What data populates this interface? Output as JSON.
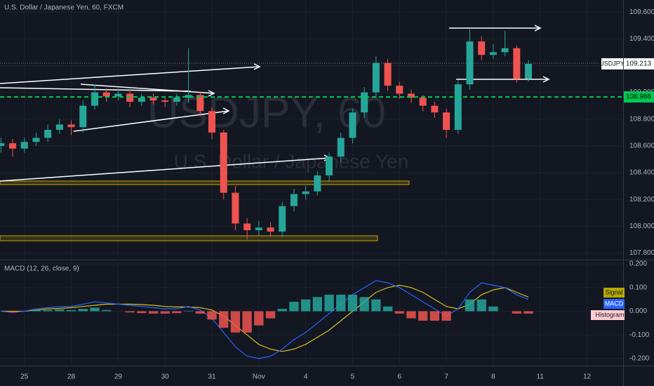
{
  "chart_data": {
    "type": "candlestick",
    "title": "U.S. Dollar / Japanese Yen, 60, FXCM",
    "watermark": "USDJPY, 60",
    "watermark_subtitle": "U.S. Dollar / Japanese Yen",
    "symbol": "USDJPY",
    "last_price": 109.213,
    "level_line": 108.966,
    "colors": {
      "up": "#26a69a",
      "down": "#ef5350",
      "macd": "#2962ff",
      "signal": "#d4c21c",
      "level": "#00c853"
    },
    "x": [
      -0.5,
      -0.25,
      0,
      0.25,
      0.5,
      0.75,
      1,
      1.25,
      1.5,
      1.75,
      2,
      2.25,
      2.5,
      2.75,
      3,
      3.25,
      3.5,
      3.75,
      4,
      4.25,
      4.5,
      4.75,
      5,
      5.25,
      5.5,
      5.75,
      6,
      6.25,
      6.5,
      6.75,
      7,
      7.25,
      7.5,
      7.75,
      8,
      8.25,
      8.5,
      8.75,
      9,
      9.25,
      9.5,
      9.75,
      10,
      10.25,
      10.5,
      10.75
    ],
    "open": [
      108.6,
      108.62,
      108.58,
      108.63,
      108.66,
      108.72,
      108.76,
      108.74,
      108.9,
      109.0,
      108.97,
      108.99,
      108.93,
      108.96,
      108.94,
      108.93,
      108.96,
      108.98,
      108.86,
      108.7,
      108.25,
      108.02,
      107.97,
      107.99,
      107.96,
      108.15,
      108.24,
      108.26,
      108.38,
      108.52,
      108.66,
      108.85,
      109.0,
      109.22,
      109.05,
      108.99,
      108.96,
      108.9,
      108.85,
      108.72,
      109.06,
      109.38,
      109.28,
      109.3,
      109.33,
      109.1
    ],
    "high": [
      108.66,
      108.65,
      108.66,
      108.7,
      108.76,
      108.8,
      108.79,
      108.94,
      109.06,
      109.03,
      109.03,
      109.02,
      108.99,
      108.99,
      108.97,
      108.99,
      109.33,
      109.0,
      108.89,
      108.72,
      108.3,
      108.06,
      108.04,
      108.03,
      108.18,
      108.28,
      108.3,
      108.41,
      108.55,
      108.7,
      108.88,
      109.04,
      109.27,
      109.25,
      109.08,
      109.02,
      108.98,
      108.93,
      108.88,
      109.09,
      109.47,
      109.42,
      109.36,
      109.46,
      109.35,
      109.24
    ],
    "low": [
      108.55,
      108.52,
      108.55,
      108.6,
      108.63,
      108.69,
      108.68,
      108.7,
      108.87,
      108.93,
      108.94,
      108.89,
      108.9,
      108.91,
      108.89,
      108.9,
      108.92,
      108.82,
      108.65,
      108.2,
      107.97,
      107.9,
      107.93,
      107.92,
      107.92,
      108.11,
      108.2,
      108.23,
      108.34,
      108.48,
      108.62,
      108.81,
      108.96,
      109.01,
      108.95,
      108.92,
      108.86,
      108.81,
      108.66,
      108.69,
      109.02,
      109.24,
      109.25,
      109.27,
      109.07,
      109.08
    ],
    "close": [
      108.62,
      108.58,
      108.63,
      108.66,
      108.72,
      108.76,
      108.74,
      108.9,
      109.0,
      108.97,
      108.99,
      108.93,
      108.96,
      108.94,
      108.93,
      108.96,
      108.98,
      108.86,
      108.7,
      108.25,
      108.02,
      107.97,
      107.99,
      107.96,
      108.15,
      108.24,
      108.26,
      108.38,
      108.52,
      108.66,
      108.85,
      109.0,
      109.22,
      109.05,
      108.99,
      108.96,
      108.9,
      108.85,
      108.72,
      109.06,
      109.38,
      109.28,
      109.3,
      109.33,
      109.1,
      109.213
    ],
    "xlim": [
      -0.52,
      12.77
    ],
    "xticks": [
      {
        "value": 0,
        "label": "25"
      },
      {
        "value": 1,
        "label": "28"
      },
      {
        "value": 2,
        "label": "29"
      },
      {
        "value": 3,
        "label": "30"
      },
      {
        "value": 4,
        "label": "31"
      },
      {
        "value": 5,
        "label": "Nov"
      },
      {
        "value": 6,
        "label": "4"
      },
      {
        "value": 7,
        "label": "5"
      },
      {
        "value": 8,
        "label": "6"
      },
      {
        "value": 9,
        "label": "7"
      },
      {
        "value": 10,
        "label": "8"
      },
      {
        "value": 11,
        "label": "11"
      },
      {
        "value": 12,
        "label": "12"
      }
    ],
    "ylim": [
      107.75,
      109.69
    ],
    "yticks": [
      {
        "value": 107.8,
        "label": "107.800"
      },
      {
        "value": 108,
        "label": "108.000"
      },
      {
        "value": 108.2,
        "label": "108.200"
      },
      {
        "value": 108.4,
        "label": "108.400"
      },
      {
        "value": 108.6,
        "label": "108.600"
      },
      {
        "value": 108.8,
        "label": "108.800"
      },
      {
        "value": 109,
        "label": "109.000"
      },
      {
        "value": 109.2,
        "label": "109.200"
      },
      {
        "value": 109.4,
        "label": "109.400"
      },
      {
        "value": 109.6,
        "label": "109.600"
      }
    ],
    "indicator": {
      "title": "MACD (12, 26, close, 9)",
      "y2lim": [
        -0.227,
        0.215
      ],
      "y2ticks": [
        {
          "value": -0.2,
          "label": "-0.200"
        },
        {
          "value": -0.1,
          "label": "-0.100"
        },
        {
          "value": 0,
          "label": "0.000"
        },
        {
          "value": 0.1,
          "label": "0.100"
        },
        {
          "value": 0.2,
          "label": "0.200"
        }
      ],
      "series": [
        {
          "name": "Signal",
          "color": "#d4c21c",
          "values": [
            0.0,
            0.0,
            0.0,
            0.005,
            0.01,
            0.012,
            0.015,
            0.02,
            0.025,
            0.03,
            0.03,
            0.03,
            0.028,
            0.025,
            0.02,
            0.018,
            0.018,
            0.015,
            0.005,
            -0.02,
            -0.06,
            -0.1,
            -0.14,
            -0.16,
            -0.17,
            -0.16,
            -0.14,
            -0.11,
            -0.08,
            -0.04,
            0.0,
            0.04,
            0.08,
            0.1,
            0.11,
            0.1,
            0.08,
            0.05,
            0.02,
            0.01,
            0.03,
            0.07,
            0.09,
            0.1,
            0.08,
            0.06
          ]
        },
        {
          "name": "MACD",
          "color": "#2962ff",
          "values": [
            0.0,
            -0.005,
            0.0,
            0.01,
            0.015,
            0.02,
            0.02,
            0.03,
            0.04,
            0.035,
            0.03,
            0.025,
            0.02,
            0.015,
            0.01,
            0.01,
            0.02,
            0.005,
            -0.03,
            -0.09,
            -0.15,
            -0.19,
            -0.2,
            -0.19,
            -0.16,
            -0.12,
            -0.09,
            -0.05,
            -0.01,
            0.03,
            0.07,
            0.1,
            0.13,
            0.12,
            0.1,
            0.07,
            0.04,
            0.01,
            -0.02,
            0.01,
            0.08,
            0.12,
            0.11,
            0.1,
            0.07,
            0.05
          ]
        },
        {
          "name": "Histogram",
          "color": "#ffcdd2",
          "values": [
            0,
            -0.005,
            0,
            0.005,
            0.005,
            0.008,
            0.005,
            0.01,
            0.015,
            0.005,
            0,
            -0.005,
            -0.008,
            -0.01,
            -0.01,
            -0.008,
            0.002,
            -0.01,
            -0.035,
            -0.07,
            -0.09,
            -0.09,
            -0.06,
            -0.03,
            0.01,
            0.04,
            0.05,
            0.06,
            0.07,
            0.07,
            0.07,
            0.06,
            0.05,
            0.02,
            -0.01,
            -0.03,
            -0.04,
            -0.04,
            -0.04,
            0,
            0.05,
            0.05,
            0.02,
            0,
            -0.01,
            -0.01
          ]
        }
      ]
    }
  }
}
